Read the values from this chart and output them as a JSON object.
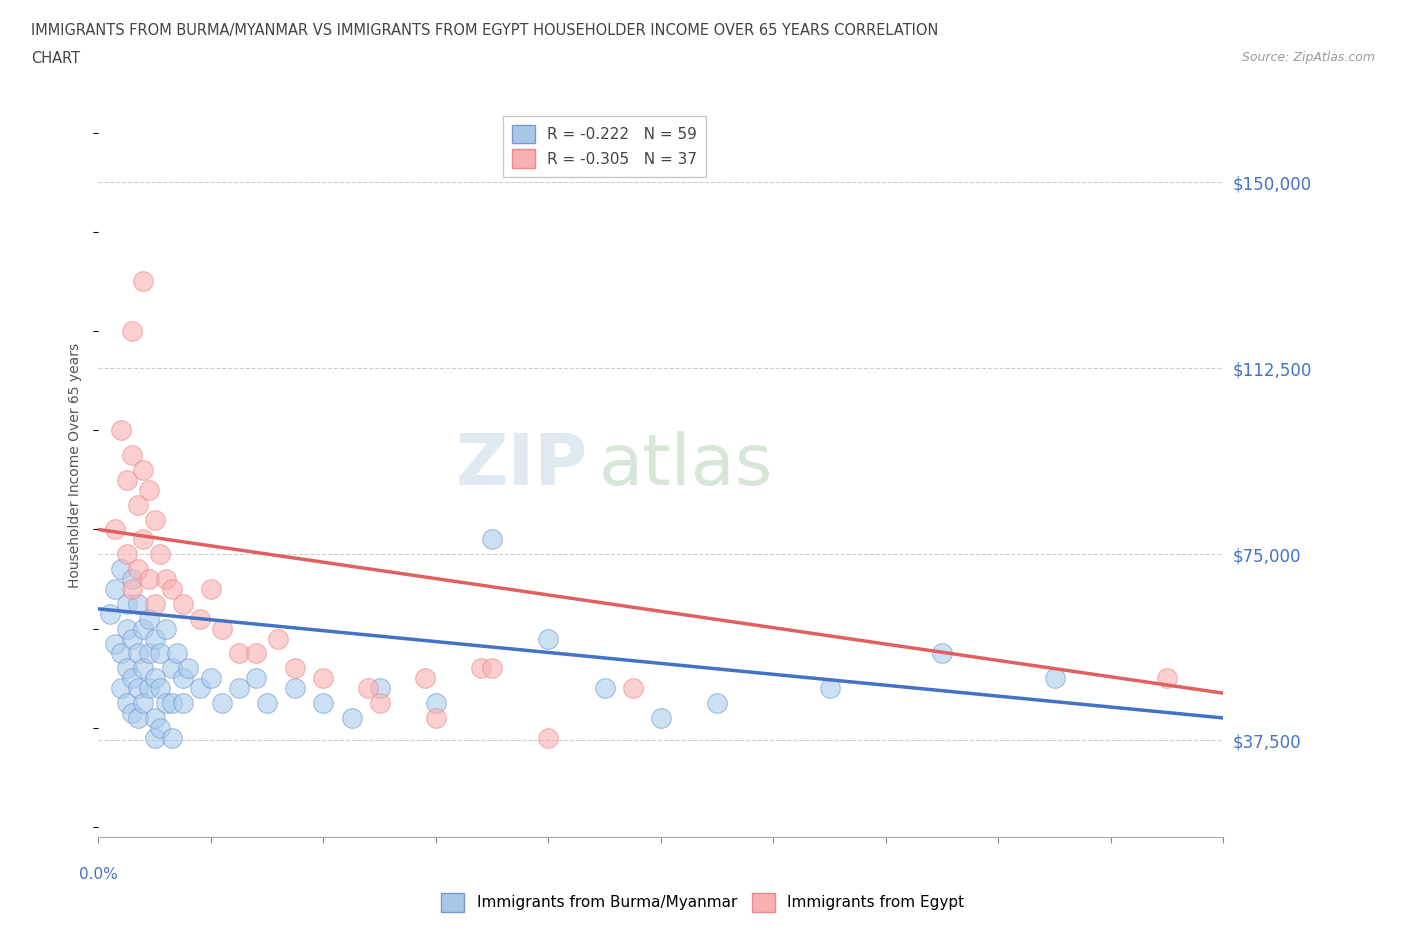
{
  "title_line1": "IMMIGRANTS FROM BURMA/MYANMAR VS IMMIGRANTS FROM EGYPT HOUSEHOLDER INCOME OVER 65 YEARS CORRELATION",
  "title_line2": "CHART",
  "source_text": "Source: ZipAtlas.com",
  "ylabel": "Householder Income Over 65 years",
  "legend_entries": [
    {
      "label": "R = -0.222   N = 59",
      "color": "#a8c8e8"
    },
    {
      "label": "R = -0.305   N = 37",
      "color": "#f9b0b0"
    }
  ],
  "legend_bottom": [
    {
      "label": "Immigrants from Burma/Myanmar",
      "color": "#a8c8e8"
    },
    {
      "label": "Immigrants from Egypt",
      "color": "#f9b0b0"
    }
  ],
  "watermark1": "ZIP",
  "watermark2": "atlas",
  "y_ticks": [
    37500,
    75000,
    112500,
    150000
  ],
  "y_tick_labels": [
    "$37,500",
    "$75,000",
    "$112,500",
    "$150,000"
  ],
  "xlim": [
    0.0,
    0.2
  ],
  "ylim": [
    18000,
    168000
  ],
  "blue_scatter": "#aaccee",
  "pink_scatter": "#f9b0b0",
  "blue_edge": "#7799cc",
  "pink_edge": "#ee8888",
  "blue_trend": "#4472c4",
  "pink_trend": "#e06060",
  "title_color": "#444444",
  "axis_label_color": "#4472c4",
  "grid_color": "#cccccc",
  "burma_x": [
    0.002,
    0.003,
    0.003,
    0.004,
    0.004,
    0.004,
    0.005,
    0.005,
    0.005,
    0.005,
    0.006,
    0.006,
    0.006,
    0.006,
    0.007,
    0.007,
    0.007,
    0.007,
    0.008,
    0.008,
    0.008,
    0.009,
    0.009,
    0.009,
    0.01,
    0.01,
    0.01,
    0.011,
    0.011,
    0.012,
    0.012,
    0.013,
    0.013,
    0.014,
    0.015,
    0.015,
    0.016,
    0.018,
    0.02,
    0.022,
    0.025,
    0.028,
    0.03,
    0.035,
    0.04,
    0.045,
    0.05,
    0.06,
    0.07,
    0.08,
    0.09,
    0.1,
    0.11,
    0.13,
    0.15,
    0.17,
    0.01,
    0.011,
    0.013
  ],
  "burma_y": [
    63000,
    57000,
    68000,
    55000,
    48000,
    72000,
    60000,
    52000,
    45000,
    65000,
    58000,
    50000,
    43000,
    70000,
    55000,
    48000,
    65000,
    42000,
    60000,
    52000,
    45000,
    62000,
    55000,
    48000,
    58000,
    50000,
    42000,
    55000,
    48000,
    60000,
    45000,
    52000,
    45000,
    55000,
    50000,
    45000,
    52000,
    48000,
    50000,
    45000,
    48000,
    50000,
    45000,
    48000,
    45000,
    42000,
    48000,
    45000,
    78000,
    58000,
    48000,
    42000,
    45000,
    48000,
    55000,
    50000,
    38000,
    40000,
    38000
  ],
  "egypt_x": [
    0.003,
    0.004,
    0.005,
    0.005,
    0.006,
    0.006,
    0.007,
    0.007,
    0.008,
    0.008,
    0.009,
    0.009,
    0.01,
    0.01,
    0.011,
    0.012,
    0.013,
    0.015,
    0.018,
    0.02,
    0.022,
    0.025,
    0.028,
    0.032,
    0.035,
    0.04,
    0.048,
    0.058,
    0.068,
    0.08,
    0.095,
    0.05,
    0.07,
    0.06,
    0.008,
    0.19,
    0.006
  ],
  "egypt_y": [
    80000,
    100000,
    75000,
    90000,
    68000,
    95000,
    85000,
    72000,
    92000,
    78000,
    70000,
    88000,
    82000,
    65000,
    75000,
    70000,
    68000,
    65000,
    62000,
    68000,
    60000,
    55000,
    55000,
    58000,
    52000,
    50000,
    48000,
    50000,
    52000,
    38000,
    48000,
    45000,
    52000,
    42000,
    130000,
    50000,
    120000
  ],
  "burma_trend_x": [
    0.0,
    0.2
  ],
  "burma_trend_y": [
    64000,
    42000
  ],
  "egypt_trend_x": [
    0.0,
    0.2
  ],
  "egypt_trend_y": [
    80000,
    47000
  ]
}
